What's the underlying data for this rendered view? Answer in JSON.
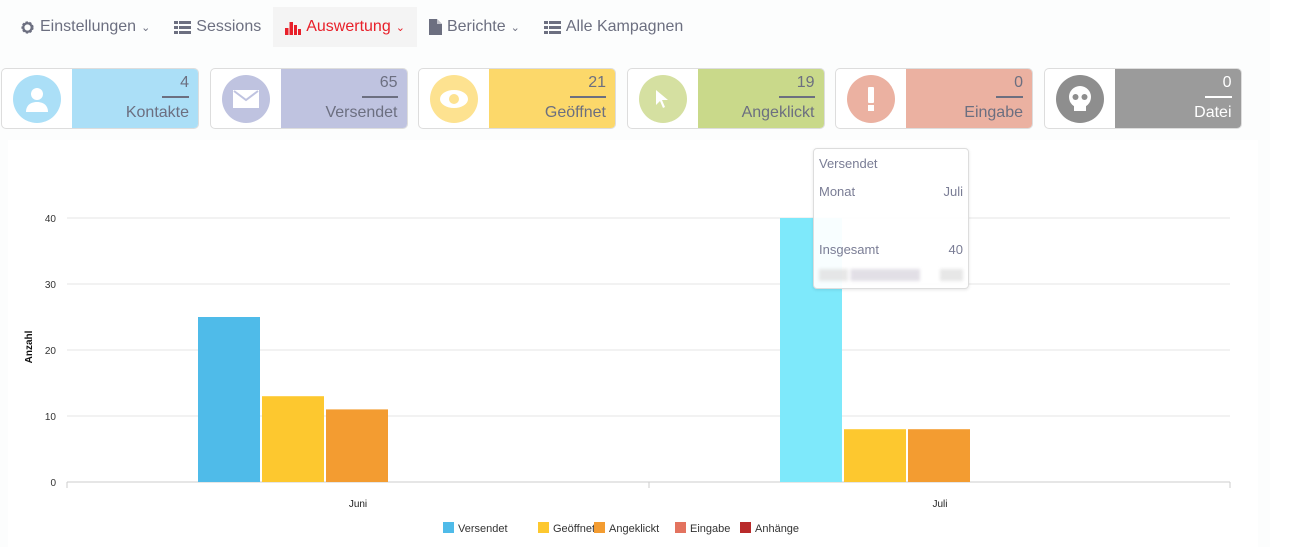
{
  "nav": [
    {
      "label": "Einstellungen",
      "icon": "gear-icon",
      "dropdown": true
    },
    {
      "label": "Sessions",
      "icon": "list-icon",
      "dropdown": false
    },
    {
      "label": "Auswertung",
      "icon": "bar-chart-icon",
      "dropdown": true,
      "active": true
    },
    {
      "label": "Berichte",
      "icon": "file-icon",
      "dropdown": true
    },
    {
      "label": "Alle Kampagnen",
      "icon": "list-icon",
      "dropdown": false
    }
  ],
  "stats": [
    {
      "value": "4",
      "label": "Kontakte",
      "icon": "user-icon",
      "color": "#abdff7",
      "circle": "#abdff7"
    },
    {
      "value": "65",
      "label": "Versendet",
      "icon": "envelope-icon",
      "color": "#bfc3e0",
      "circle": "#bfc3e0"
    },
    {
      "value": "21",
      "label": "Geöffnet",
      "icon": "eye-icon",
      "color": "#fcd86a",
      "circle": "#fde290"
    },
    {
      "value": "19",
      "label": "Angeklickt",
      "icon": "cursor-icon",
      "color": "#c9d98a",
      "circle": "#d5e0a1"
    },
    {
      "value": "0",
      "label": "Eingabe",
      "icon": "exclamation-icon",
      "color": "#ebb1a1",
      "circle": "#ebb1a1"
    },
    {
      "value": "0",
      "label": "Datei",
      "icon": "skull-icon",
      "color": "#9b9b9b",
      "circle": "#8e8e8e"
    }
  ],
  "tooltip": {
    "title": "Versendet",
    "month_label": "Monat",
    "month": "Juli",
    "total_label": "Insgesamt",
    "total": "40"
  },
  "chart_data": {
    "type": "bar",
    "categories": [
      "Juni",
      "Juli"
    ],
    "ylabel": "Anzahl",
    "xlabel": "",
    "ylim": [
      0,
      40
    ],
    "yticks": [
      0,
      10,
      20,
      30,
      40
    ],
    "series": [
      {
        "name": "Versendet",
        "color": "#4fbbe9",
        "values": [
          25,
          40
        ]
      },
      {
        "name": "Geöffnet",
        "color": "#fdc82f",
        "values": [
          13,
          8
        ]
      },
      {
        "name": "Angeklickt",
        "color": "#f39c31",
        "values": [
          11,
          8
        ]
      },
      {
        "name": "Eingabe",
        "color": "#e3735f",
        "values": [
          0,
          0
        ]
      },
      {
        "name": "Anhänge",
        "color": "#b92a2a",
        "values": [
          0,
          0
        ]
      }
    ],
    "highlight": {
      "series": 0,
      "category": 1,
      "color": "#7ee9fb"
    },
    "legend": "bottom"
  }
}
